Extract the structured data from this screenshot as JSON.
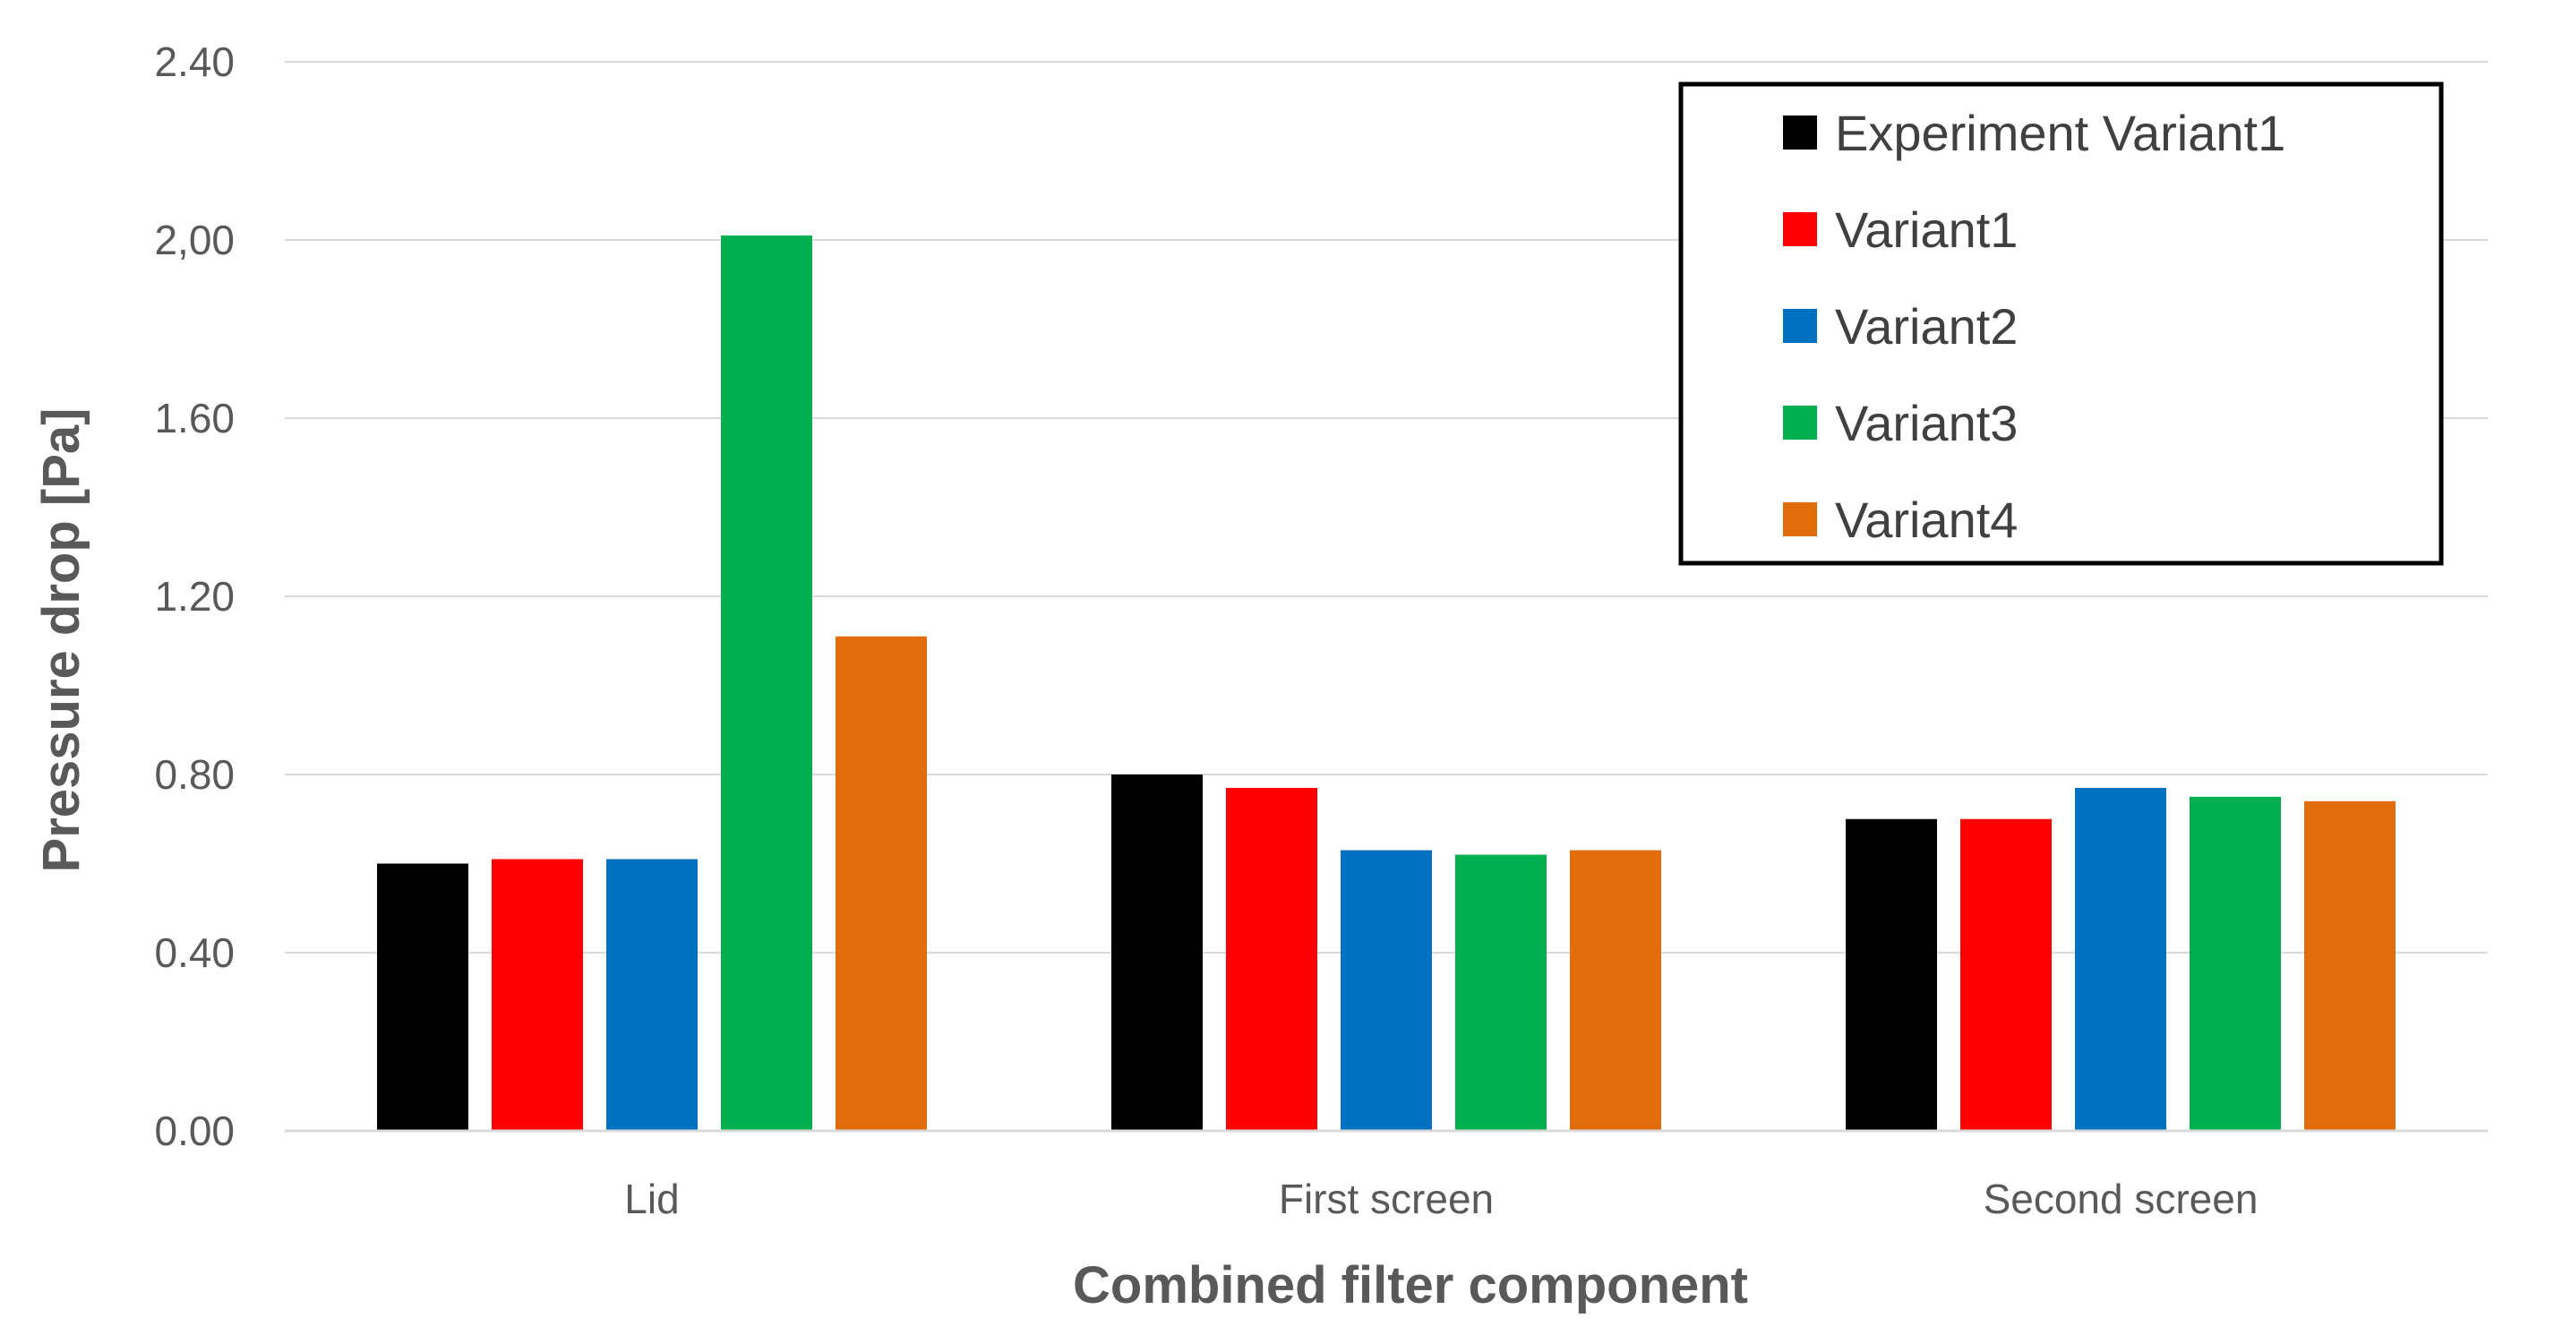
{
  "chart_data": {
    "type": "bar",
    "title": "",
    "xlabel": "Combined filter component",
    "ylabel": "Pressure drop [Pa]",
    "ylim": [
      0,
      2.4
    ],
    "yticks": [
      0,
      0.4,
      0.8,
      1.2,
      1.6,
      2.0,
      2.4
    ],
    "ytick_labels": [
      "0.00",
      "0.40",
      "0.80",
      "1.20",
      "1.60",
      "2,00",
      "2.40"
    ],
    "grid": true,
    "legend_position": "top-right",
    "categories": [
      "Lid",
      "First screen",
      "Second screen"
    ],
    "series": [
      {
        "name": "Experiment Variant1",
        "color": "#000000",
        "values": [
          0.6,
          0.8,
          0.7
        ]
      },
      {
        "name": "Variant1",
        "color": "#FF0000",
        "values": [
          0.61,
          0.77,
          0.7
        ]
      },
      {
        "name": "Variant2",
        "color": "#0070C0",
        "values": [
          0.61,
          0.63,
          0.77
        ]
      },
      {
        "name": "Variant3",
        "color": "#00B050",
        "values": [
          2.01,
          0.62,
          0.75
        ]
      },
      {
        "name": "Variant4",
        "color": "#E36C0A",
        "values": [
          1.11,
          0.63,
          0.74
        ]
      }
    ]
  }
}
